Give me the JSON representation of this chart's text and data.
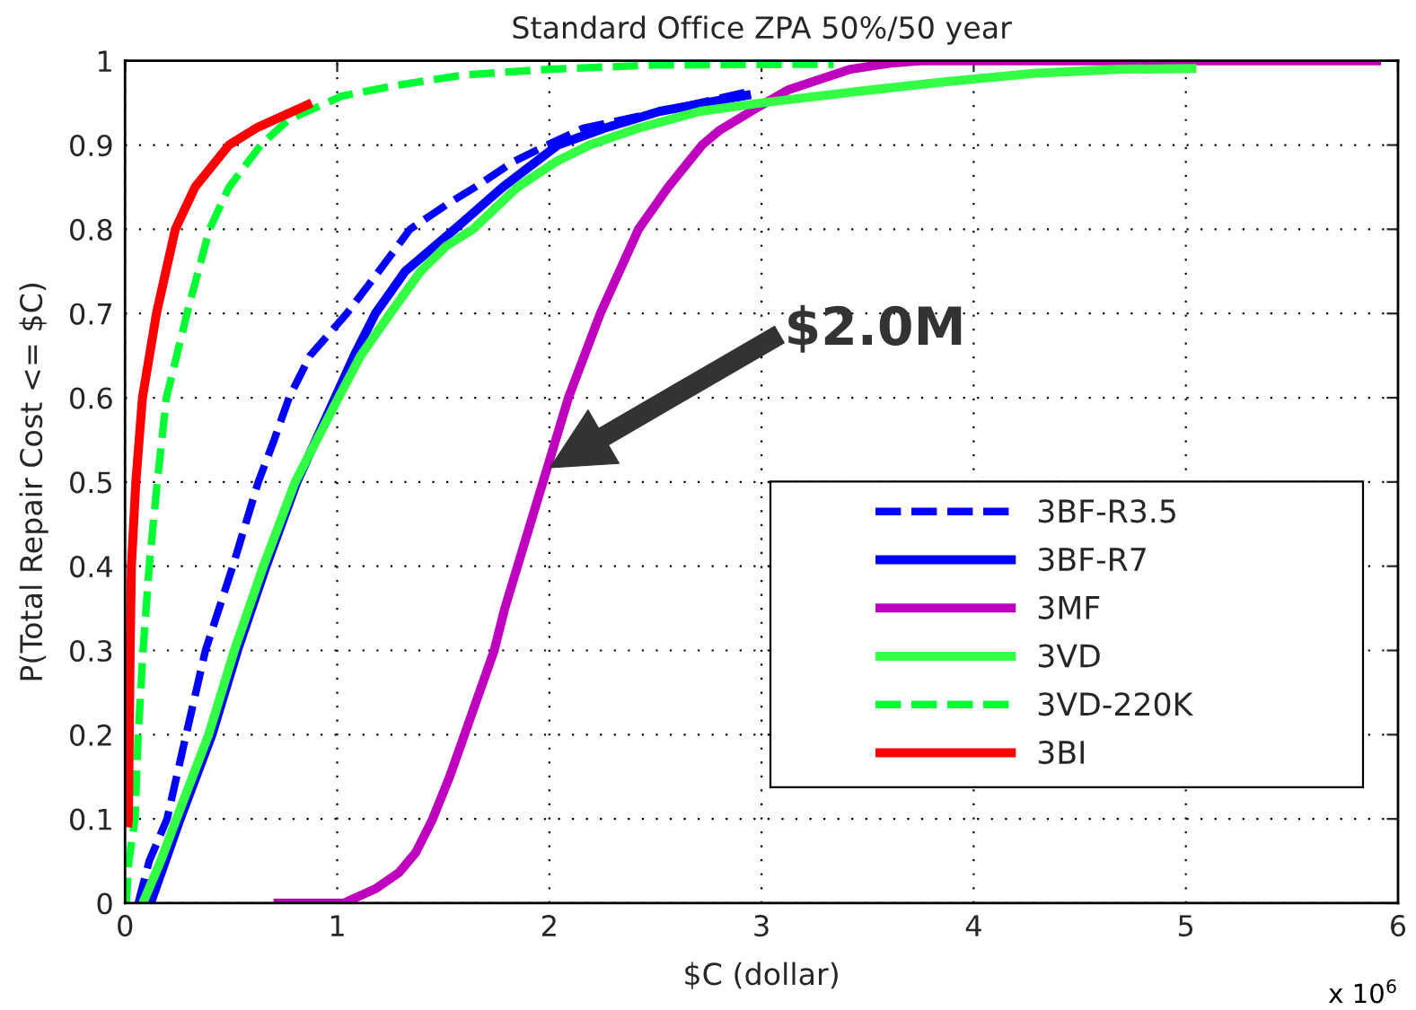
{
  "chart_data": {
    "type": "line",
    "title": "Standard Office ZPA 50%/50 year",
    "xlabel": "$C (dollar)",
    "ylabel": "P(Total Repair Cost <= $C)",
    "xlim": [
      0,
      6
    ],
    "xticks": [
      0,
      1,
      2,
      3,
      4,
      5,
      6
    ],
    "ylim": [
      0,
      1
    ],
    "yticks": [
      0,
      0.1,
      0.2,
      0.3,
      0.4,
      0.5,
      0.6,
      0.7,
      0.8,
      0.9,
      1
    ],
    "grid": true,
    "legend": "lower right",
    "annotations": [
      "$2.0M",
      "x 10$^{6}$"
    ],
    "series": [
      {
        "name": "3BF-R3.5",
        "color": "#0000ff",
        "line_style": "dashed",
        "x": [
          0.062,
          0.114,
          0.198,
          0.288,
          0.379,
          0.508,
          0.628,
          0.703,
          0.773,
          0.872,
          1.045,
          1.196,
          1.343,
          1.52,
          1.65,
          1.83,
          1.99,
          2.16,
          2.53,
          2.95
        ],
        "values": [
          0,
          0.05,
          0.1,
          0.2,
          0.3,
          0.4,
          0.5,
          0.55,
          0.6,
          0.65,
          0.7,
          0.75,
          0.8,
          0.83,
          0.85,
          0.88,
          0.9,
          0.92,
          0.94,
          0.964
        ]
      },
      {
        "name": "3BF-R7",
        "color": "#0000ff",
        "line_style": "solid",
        "x": [
          0.12,
          0.19,
          0.26,
          0.41,
          0.53,
          0.665,
          0.81,
          0.99,
          1.08,
          1.18,
          1.32,
          1.553,
          1.78,
          2.04,
          2.26,
          2.52,
          2.95
        ],
        "values": [
          0,
          0.05,
          0.1,
          0.2,
          0.3,
          0.4,
          0.5,
          0.6,
          0.65,
          0.7,
          0.75,
          0.8,
          0.85,
          0.9,
          0.92,
          0.94,
          0.96
        ]
      },
      {
        "name": "3MF",
        "color": "#bf00bf",
        "line_style": "solid",
        "x": [
          0.7,
          1.03,
          1.18,
          1.29,
          1.37,
          1.45,
          1.53,
          1.6,
          1.67,
          1.74,
          1.79,
          1.85,
          1.91,
          1.97,
          2.09,
          2.24,
          2.42,
          2.56,
          2.72,
          2.8,
          2.97,
          3.13,
          3.42,
          3.6,
          3.75,
          5.92
        ],
        "values": [
          0,
          0,
          0.017,
          0.036,
          0.06,
          0.1,
          0.15,
          0.2,
          0.25,
          0.3,
          0.35,
          0.4,
          0.45,
          0.5,
          0.6,
          0.7,
          0.8,
          0.85,
          0.9,
          0.917,
          0.943,
          0.966,
          0.99,
          0.997,
          1.0,
          1.0
        ]
      },
      {
        "name": "3VD",
        "color": "#33ff44",
        "line_style": "solid",
        "x": [
          0.084,
          0.168,
          0.242,
          0.394,
          0.515,
          0.652,
          0.802,
          1.006,
          1.111,
          1.25,
          1.393,
          1.514,
          1.64,
          1.85,
          2.03,
          2.19,
          2.42,
          2.71,
          3.0,
          3.43,
          3.86,
          4.28,
          4.7,
          5.05
        ],
        "values": [
          0,
          0.05,
          0.1,
          0.2,
          0.3,
          0.4,
          0.5,
          0.6,
          0.65,
          0.7,
          0.75,
          0.78,
          0.8,
          0.85,
          0.88,
          0.9,
          0.92,
          0.94,
          0.95,
          0.963,
          0.975,
          0.985,
          0.99,
          0.991
        ]
      },
      {
        "name": "3VD-220K",
        "color": "#00ff33",
        "line_style": "dashed",
        "x": [
          0.005,
          0.018,
          0.047,
          0.062,
          0.085,
          0.114,
          0.152,
          0.195,
          0.292,
          0.398,
          0.49,
          0.64,
          0.77,
          0.95,
          1.02,
          1.26,
          1.59,
          2.0,
          2.5,
          3.34
        ],
        "values": [
          0,
          0.05,
          0.1,
          0.2,
          0.3,
          0.4,
          0.5,
          0.6,
          0.7,
          0.8,
          0.85,
          0.9,
          0.93,
          0.95,
          0.958,
          0.97,
          0.983,
          0.99,
          0.995,
          0.996
        ]
      },
      {
        "name": "3BI",
        "color": "#ff0000",
        "line_style": "solid",
        "x": [
          0.012,
          0.016,
          0.02,
          0.024,
          0.03,
          0.051,
          0.082,
          0.148,
          0.237,
          0.33,
          0.49,
          0.625,
          0.88
        ],
        "values": [
          0.09,
          0.1,
          0.2,
          0.3,
          0.4,
          0.5,
          0.6,
          0.7,
          0.8,
          0.85,
          0.9,
          0.921,
          0.95
        ]
      }
    ]
  }
}
